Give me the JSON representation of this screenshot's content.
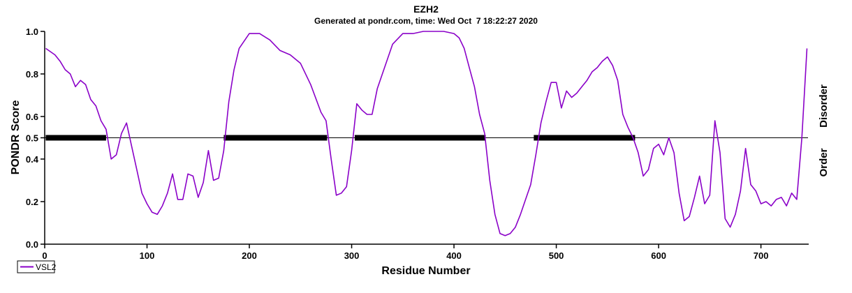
{
  "chart_data": {
    "type": "line",
    "title": "EZH2",
    "subtitle": "Generated at pondr.com, time: Wed Oct  7 18:22:27 2020",
    "xlabel": "Residue Number",
    "ylabel": "PONDR Score",
    "xlim": [
      0,
      746
    ],
    "ylim": [
      0.0,
      1.0
    ],
    "x_ticks": [
      0,
      100,
      200,
      300,
      400,
      500,
      600,
      700
    ],
    "y_ticks": [
      {
        "value": 0.0,
        "label": "0.0"
      },
      {
        "value": 0.2,
        "label": "0.2"
      },
      {
        "value": 0.4,
        "label": "0.4"
      },
      {
        "value": 0.5,
        "label": "0.5"
      },
      {
        "value": 0.6,
        "label": "0.6"
      },
      {
        "value": 0.8,
        "label": "0.8"
      },
      {
        "value": 1.0,
        "label": "1.0"
      }
    ],
    "threshold": 0.5,
    "side_labels": {
      "upper": "Disorder",
      "lower": "Order"
    },
    "legend": {
      "position": "bottom-left",
      "entries": [
        "VSL2"
      ]
    },
    "series": [
      {
        "name": "VSL2",
        "color": "#8a00c8",
        "x": [
          1,
          10,
          15,
          20,
          25,
          30,
          35,
          40,
          45,
          50,
          55,
          60,
          65,
          70,
          75,
          80,
          85,
          90,
          95,
          100,
          105,
          110,
          115,
          120,
          125,
          130,
          135,
          140,
          145,
          150,
          155,
          160,
          165,
          170,
          175,
          180,
          185,
          190,
          200,
          210,
          220,
          230,
          240,
          250,
          260,
          270,
          275,
          280,
          285,
          290,
          295,
          300,
          305,
          310,
          315,
          320,
          325,
          330,
          340,
          350,
          360,
          370,
          380,
          390,
          400,
          405,
          410,
          415,
          420,
          425,
          430,
          435,
          440,
          445,
          450,
          455,
          460,
          465,
          470,
          475,
          480,
          485,
          490,
          495,
          500,
          505,
          510,
          515,
          520,
          525,
          530,
          535,
          540,
          545,
          550,
          555,
          560,
          565,
          570,
          575,
          580,
          585,
          590,
          595,
          600,
          605,
          610,
          615,
          620,
          625,
          630,
          635,
          640,
          645,
          650,
          655,
          660,
          665,
          670,
          675,
          680,
          685,
          690,
          695,
          700,
          705,
          710,
          715,
          720,
          725,
          730,
          735,
          740,
          745
        ],
        "values": [
          0.92,
          0.89,
          0.86,
          0.82,
          0.8,
          0.74,
          0.77,
          0.75,
          0.68,
          0.65,
          0.58,
          0.54,
          0.4,
          0.42,
          0.52,
          0.57,
          0.46,
          0.35,
          0.24,
          0.19,
          0.15,
          0.14,
          0.18,
          0.24,
          0.33,
          0.21,
          0.21,
          0.33,
          0.32,
          0.22,
          0.29,
          0.44,
          0.3,
          0.31,
          0.44,
          0.67,
          0.82,
          0.92,
          0.99,
          0.99,
          0.96,
          0.91,
          0.89,
          0.85,
          0.75,
          0.62,
          0.58,
          0.4,
          0.23,
          0.24,
          0.27,
          0.44,
          0.66,
          0.63,
          0.61,
          0.61,
          0.73,
          0.8,
          0.94,
          0.99,
          0.99,
          1.0,
          1.0,
          1.0,
          0.99,
          0.97,
          0.92,
          0.83,
          0.74,
          0.61,
          0.52,
          0.3,
          0.14,
          0.05,
          0.04,
          0.05,
          0.08,
          0.14,
          0.21,
          0.28,
          0.42,
          0.57,
          0.67,
          0.76,
          0.76,
          0.64,
          0.72,
          0.69,
          0.71,
          0.74,
          0.77,
          0.81,
          0.83,
          0.86,
          0.88,
          0.84,
          0.77,
          0.61,
          0.55,
          0.5,
          0.43,
          0.32,
          0.35,
          0.45,
          0.47,
          0.42,
          0.5,
          0.43,
          0.24,
          0.11,
          0.13,
          0.22,
          0.32,
          0.19,
          0.23,
          0.58,
          0.43,
          0.12,
          0.08,
          0.14,
          0.25,
          0.45,
          0.28,
          0.25,
          0.19,
          0.2,
          0.18,
          0.21,
          0.22,
          0.18,
          0.24,
          0.21,
          0.5,
          0.92
        ]
      }
    ],
    "ordered_regions": [
      [
        60,
        175
      ],
      [
        276,
        303
      ],
      [
        431,
        478
      ],
      [
        577,
        746
      ]
    ],
    "disordered_regions": [
      [
        1,
        60
      ],
      [
        175,
        276
      ],
      [
        303,
        431
      ],
      [
        478,
        577
      ]
    ],
    "grid": false
  }
}
